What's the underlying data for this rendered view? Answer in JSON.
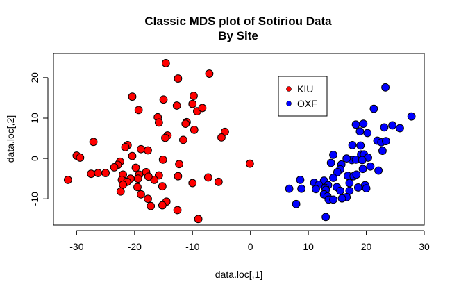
{
  "chart_data": {
    "type": "scatter",
    "title": [
      "Classic MDS plot of Sotiriou Data",
      "By Site"
    ],
    "xlabel": "data.loc[,1]",
    "ylabel": "data.loc[,2]",
    "xlim": [
      -34,
      30
    ],
    "ylim": [
      -16.5,
      26
    ],
    "xticks": [
      -30,
      -20,
      -10,
      0,
      10,
      20,
      30
    ],
    "xtick_labels": [
      "-30",
      "-20",
      "-10",
      "0",
      "10",
      "20",
      "30"
    ],
    "yticks": [
      -10,
      0,
      10,
      20
    ],
    "ytick_labels": [
      "-10",
      "0",
      "10",
      "20"
    ],
    "grid": false,
    "legend_position": "top-center-right",
    "series": [
      {
        "name": "KIU",
        "color": "#ff0000",
        "points": [
          [
            -14.6,
            23.6
          ],
          [
            -7.1,
            21.0
          ],
          [
            -12.5,
            19.8
          ],
          [
            -9.8,
            15.5
          ],
          [
            -20.4,
            15.3
          ],
          [
            -15.0,
            14.6
          ],
          [
            -10.0,
            13.5
          ],
          [
            -12.7,
            13.1
          ],
          [
            -9.2,
            11.7
          ],
          [
            -19.3,
            12.0
          ],
          [
            -8.3,
            12.5
          ],
          [
            -16.0,
            10.2
          ],
          [
            -11.0,
            9.0
          ],
          [
            -15.8,
            8.9
          ],
          [
            -11.2,
            8.6
          ],
          [
            -9.7,
            7.1
          ],
          [
            -4.4,
            6.6
          ],
          [
            -14.3,
            5.7
          ],
          [
            -14.7,
            5.1
          ],
          [
            -5.0,
            5.2
          ],
          [
            -11.6,
            4.6
          ],
          [
            -27.1,
            4.1
          ],
          [
            -18.9,
            2.3
          ],
          [
            -21.2,
            3.3
          ],
          [
            -17.7,
            2.0
          ],
          [
            -21.6,
            2.8
          ],
          [
            -30.0,
            0.7
          ],
          [
            -29.4,
            0.2
          ],
          [
            -22.5,
            -0.8
          ],
          [
            -22.9,
            -1.6
          ],
          [
            -15.1,
            -0.3
          ],
          [
            -20.4,
            0.6
          ],
          [
            -0.1,
            -1.3
          ],
          [
            -12.3,
            -1.4
          ],
          [
            -19.8,
            -2.3
          ],
          [
            -23.5,
            -2.2
          ],
          [
            -27.5,
            -3.8
          ],
          [
            -26.3,
            -3.6
          ],
          [
            -25.0,
            -3.6
          ],
          [
            -22.0,
            -4.0
          ],
          [
            -18.0,
            -3.4
          ],
          [
            -19.2,
            -4.0
          ],
          [
            -15.8,
            -4.2
          ],
          [
            -19.4,
            -5.0
          ],
          [
            -16.6,
            -5.3
          ],
          [
            -17.6,
            -4.5
          ],
          [
            -20.7,
            -5.0
          ],
          [
            -22.2,
            -5.3
          ],
          [
            -31.5,
            -5.3
          ],
          [
            -21.3,
            -5.8
          ],
          [
            -12.5,
            -4.4
          ],
          [
            -7.3,
            -4.7
          ],
          [
            -5.5,
            -5.8
          ],
          [
            -10.0,
            -6.1
          ],
          [
            -22.0,
            -6.5
          ],
          [
            -15.2,
            -6.9
          ],
          [
            -19.5,
            -7.1
          ],
          [
            -22.4,
            -8.2
          ],
          [
            -18.9,
            -8.9
          ],
          [
            -17.7,
            -10.0
          ],
          [
            -14.5,
            -10.7
          ],
          [
            -15.2,
            -11.6
          ],
          [
            -17.2,
            -11.8
          ],
          [
            -12.6,
            -12.8
          ],
          [
            -9.0,
            -15.0
          ]
        ]
      },
      {
        "name": "OXF",
        "color": "#0000ff",
        "points": [
          [
            23.3,
            17.6
          ],
          [
            21.3,
            12.3
          ],
          [
            27.8,
            10.4
          ],
          [
            19.5,
            8.6
          ],
          [
            18.2,
            8.4
          ],
          [
            24.5,
            8.2
          ],
          [
            25.8,
            7.5
          ],
          [
            23.1,
            7.7
          ],
          [
            18.9,
            6.7
          ],
          [
            20.2,
            6.3
          ],
          [
            21.9,
            4.4
          ],
          [
            22.6,
            4.0
          ],
          [
            23.4,
            4.3
          ],
          [
            17.6,
            3.3
          ],
          [
            19.0,
            3.2
          ],
          [
            22.8,
            1.9
          ],
          [
            19.1,
            1.0
          ],
          [
            19.6,
            1.0
          ],
          [
            14.3,
            0.9
          ],
          [
            20.3,
            0.2
          ],
          [
            17.5,
            -0.4
          ],
          [
            18.2,
            -0.3
          ],
          [
            19.3,
            -0.4
          ],
          [
            16.6,
            0.0
          ],
          [
            13.9,
            -1.1
          ],
          [
            15.7,
            -1.5
          ],
          [
            15.5,
            -2.7
          ],
          [
            19.4,
            -2.6
          ],
          [
            20.7,
            -2.0
          ],
          [
            22.1,
            -3.0
          ],
          [
            15.0,
            -3.4
          ],
          [
            16.8,
            -4.3
          ],
          [
            17.8,
            -4.4
          ],
          [
            18.3,
            -4.0
          ],
          [
            14.3,
            -4.8
          ],
          [
            12.7,
            -5.5
          ],
          [
            8.6,
            -5.3
          ],
          [
            13.4,
            -6.6
          ],
          [
            17.1,
            -6.1
          ],
          [
            19.8,
            -6.6
          ],
          [
            11.0,
            -6.0
          ],
          [
            11.8,
            -6.5
          ],
          [
            14.9,
            -7.1
          ],
          [
            18.6,
            -7.2
          ],
          [
            20.0,
            -7.4
          ],
          [
            12.9,
            -7.3
          ],
          [
            11.3,
            -7.6
          ],
          [
            13.0,
            -7.8
          ],
          [
            6.7,
            -7.5
          ],
          [
            8.8,
            -7.5
          ],
          [
            15.5,
            -8.0
          ],
          [
            17.1,
            -8.0
          ],
          [
            12.7,
            -8.9
          ],
          [
            16.6,
            -9.6
          ],
          [
            15.8,
            -9.9
          ],
          [
            13.3,
            -9.4
          ],
          [
            13.5,
            -10.2
          ],
          [
            14.3,
            -10.2
          ],
          [
            7.9,
            -11.3
          ],
          [
            13.0,
            -14.5
          ]
        ]
      }
    ]
  }
}
